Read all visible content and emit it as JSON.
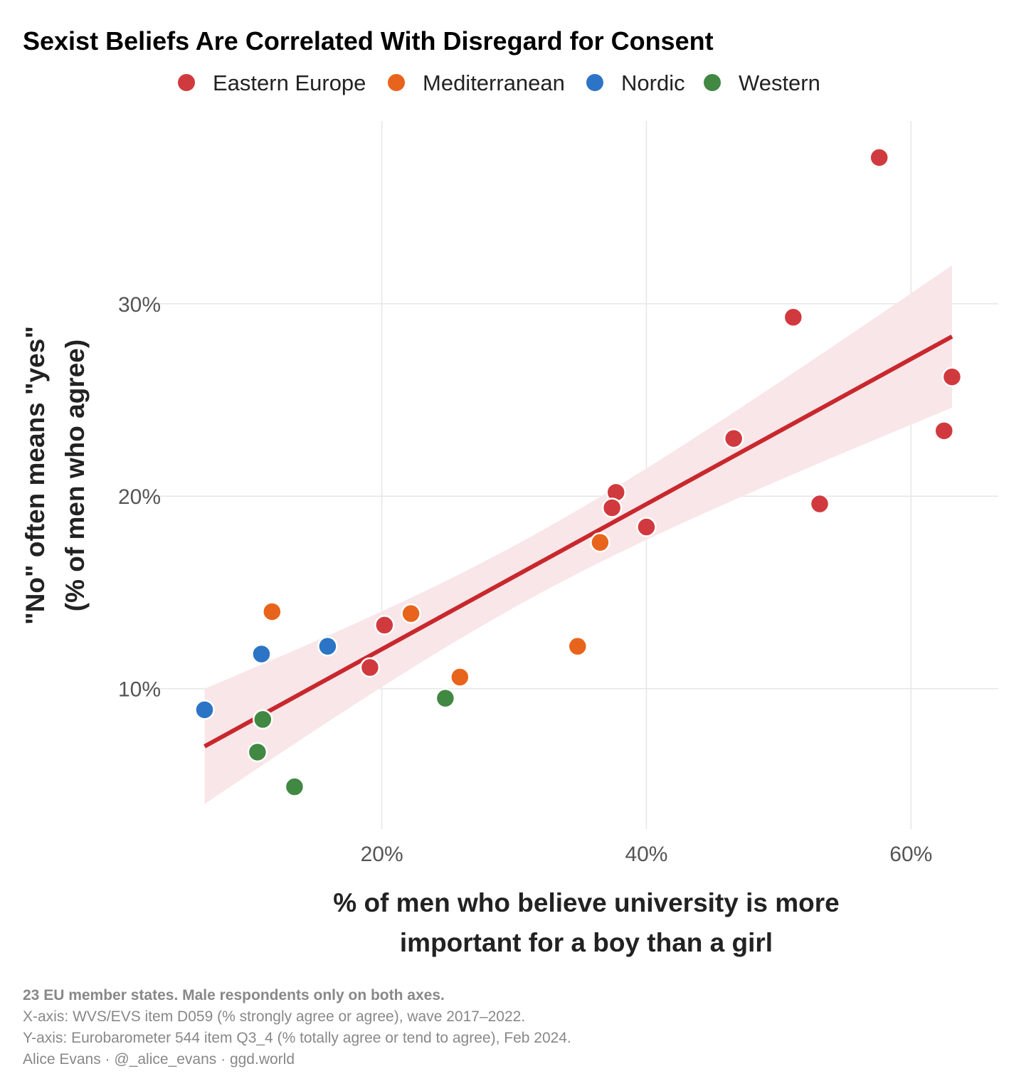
{
  "chart_data": {
    "type": "scatter",
    "title": "Sexist Beliefs Are Correlated With Disregard for Consent",
    "xlabel": [
      "% of men who believe university is more",
      "important for a boy than a girl"
    ],
    "ylabel": [
      "\"No\" often means \"yes\"",
      "(% of men who agree)"
    ],
    "xlim": [
      2.7,
      66.6
    ],
    "ylim": [
      2.7,
      39.5
    ],
    "xticks": [
      {
        "value": 20,
        "label": "20%"
      },
      {
        "value": 40,
        "label": "40%"
      },
      {
        "value": 60,
        "label": "60%"
      }
    ],
    "yticks": [
      {
        "value": 10,
        "label": "10%"
      },
      {
        "value": 20,
        "label": "20%"
      },
      {
        "value": 30,
        "label": "30%"
      }
    ],
    "grid": true,
    "legend_position": "top",
    "series": [
      {
        "name": "Eastern Europe",
        "color": "#d03a3e",
        "points": [
          [
            57.6,
            37.6
          ],
          [
            51.1,
            29.3
          ],
          [
            63.1,
            26.2
          ],
          [
            62.5,
            23.4
          ],
          [
            46.6,
            23.0
          ],
          [
            37.7,
            20.2
          ],
          [
            37.4,
            19.4
          ],
          [
            53.1,
            19.6
          ],
          [
            40.0,
            18.4
          ],
          [
            20.2,
            13.3
          ],
          [
            19.1,
            11.1
          ]
        ]
      },
      {
        "name": "Mediterranean",
        "color": "#e8641c",
        "points": [
          [
            11.7,
            14.0
          ],
          [
            22.2,
            13.9
          ],
          [
            36.5,
            17.6
          ],
          [
            34.8,
            12.2
          ],
          [
            25.9,
            10.6
          ]
        ]
      },
      {
        "name": "Nordic",
        "color": "#2c74c6",
        "points": [
          [
            6.6,
            8.9
          ],
          [
            10.9,
            11.8
          ],
          [
            15.9,
            12.2
          ]
        ]
      },
      {
        "name": "Western",
        "color": "#418843",
        "points": [
          [
            11.0,
            8.4
          ],
          [
            10.6,
            6.7
          ],
          [
            13.4,
            4.9
          ],
          [
            24.8,
            9.5
          ]
        ]
      }
    ],
    "fit": {
      "type": "linear",
      "slope": 0.377,
      "intercept": 4.51,
      "x_range": [
        6.6,
        63.1
      ],
      "ci_halfwidth_center": 1.6,
      "ci_curvature": 0.0108,
      "x_mean": 31.0,
      "line_color": "#c8282d",
      "band_color": "#f9e6e8"
    }
  },
  "caption": {
    "line1": "23 EU member states. Male respondents only on both axes.",
    "line2": "X-axis: WVS/EVS item D059 (% strongly agree or agree), wave 2017–2022.",
    "line3": "Y-axis: Eurobarometer 544 item Q3_4 (% totally agree or tend to agree), Feb 2024.",
    "line4": "Alice Evans · @_alice_evans · ggd.world"
  }
}
